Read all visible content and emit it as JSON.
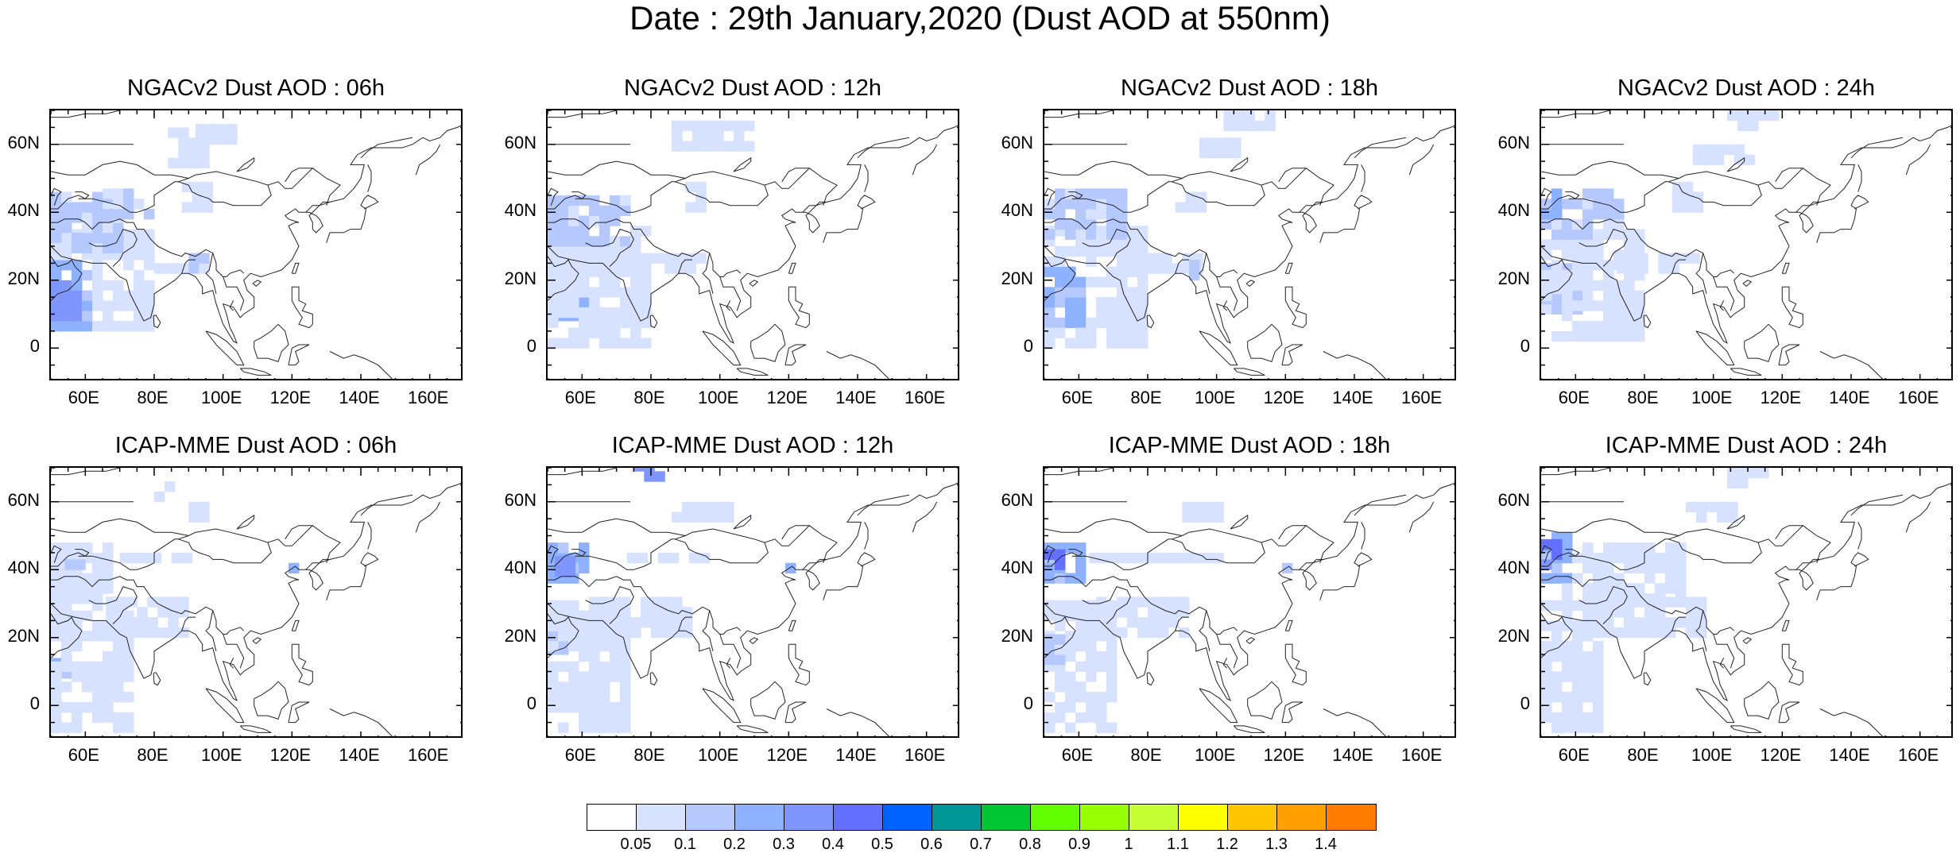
{
  "title": "Date : 29th January,2020 (Dust AOD at 550nm)",
  "panels": [
    {
      "title": "NGACv2 Dust AOD : 06h",
      "model": "NGACv2",
      "hour": "06h"
    },
    {
      "title": "NGACv2 Dust AOD : 12h",
      "model": "NGACv2",
      "hour": "12h"
    },
    {
      "title": "NGACv2 Dust AOD : 18h",
      "model": "NGACv2",
      "hour": "18h"
    },
    {
      "title": "NGACv2 Dust AOD : 24h",
      "model": "NGACv2",
      "hour": "24h"
    },
    {
      "title": "ICAP-MME Dust AOD : 06h",
      "model": "ICAP-MME",
      "hour": "06h"
    },
    {
      "title": "ICAP-MME Dust AOD : 12h",
      "model": "ICAP-MME",
      "hour": "12h"
    },
    {
      "title": "ICAP-MME Dust AOD : 18h",
      "model": "ICAP-MME",
      "hour": "18h"
    },
    {
      "title": "ICAP-MME Dust AOD : 24h",
      "model": "ICAP-MME",
      "hour": "24h"
    }
  ],
  "map": {
    "lon_range": [
      50,
      170
    ],
    "lat_range": [
      -10,
      70
    ],
    "lon_ticks": [
      "60E",
      "80E",
      "100E",
      "120E",
      "140E",
      "160E"
    ],
    "lat_ticks": [
      "60N",
      "40N",
      "20N",
      "0"
    ],
    "lon_tick_values": [
      60,
      80,
      100,
      120,
      140,
      160
    ],
    "lat_tick_values": [
      60,
      40,
      20,
      0
    ]
  },
  "colorbar": {
    "labels": [
      "0.05",
      "0.1",
      "0.2",
      "0.3",
      "0.4",
      "0.5",
      "0.6",
      "0.7",
      "0.8",
      "0.9",
      "1",
      "1.1",
      "1.2",
      "1.3",
      "1.4"
    ],
    "colors": [
      "#ffffff",
      "#d6e2ff",
      "#b5c9ff",
      "#8eb2ff",
      "#7f96ff",
      "#6370ff",
      "#0063ff",
      "#009696",
      "#00c633",
      "#63ff00",
      "#96ff00",
      "#c6ff33",
      "#ffff00",
      "#ffc600",
      "#ffa000",
      "#ff7c00",
      "#ff1900"
    ]
  }
}
